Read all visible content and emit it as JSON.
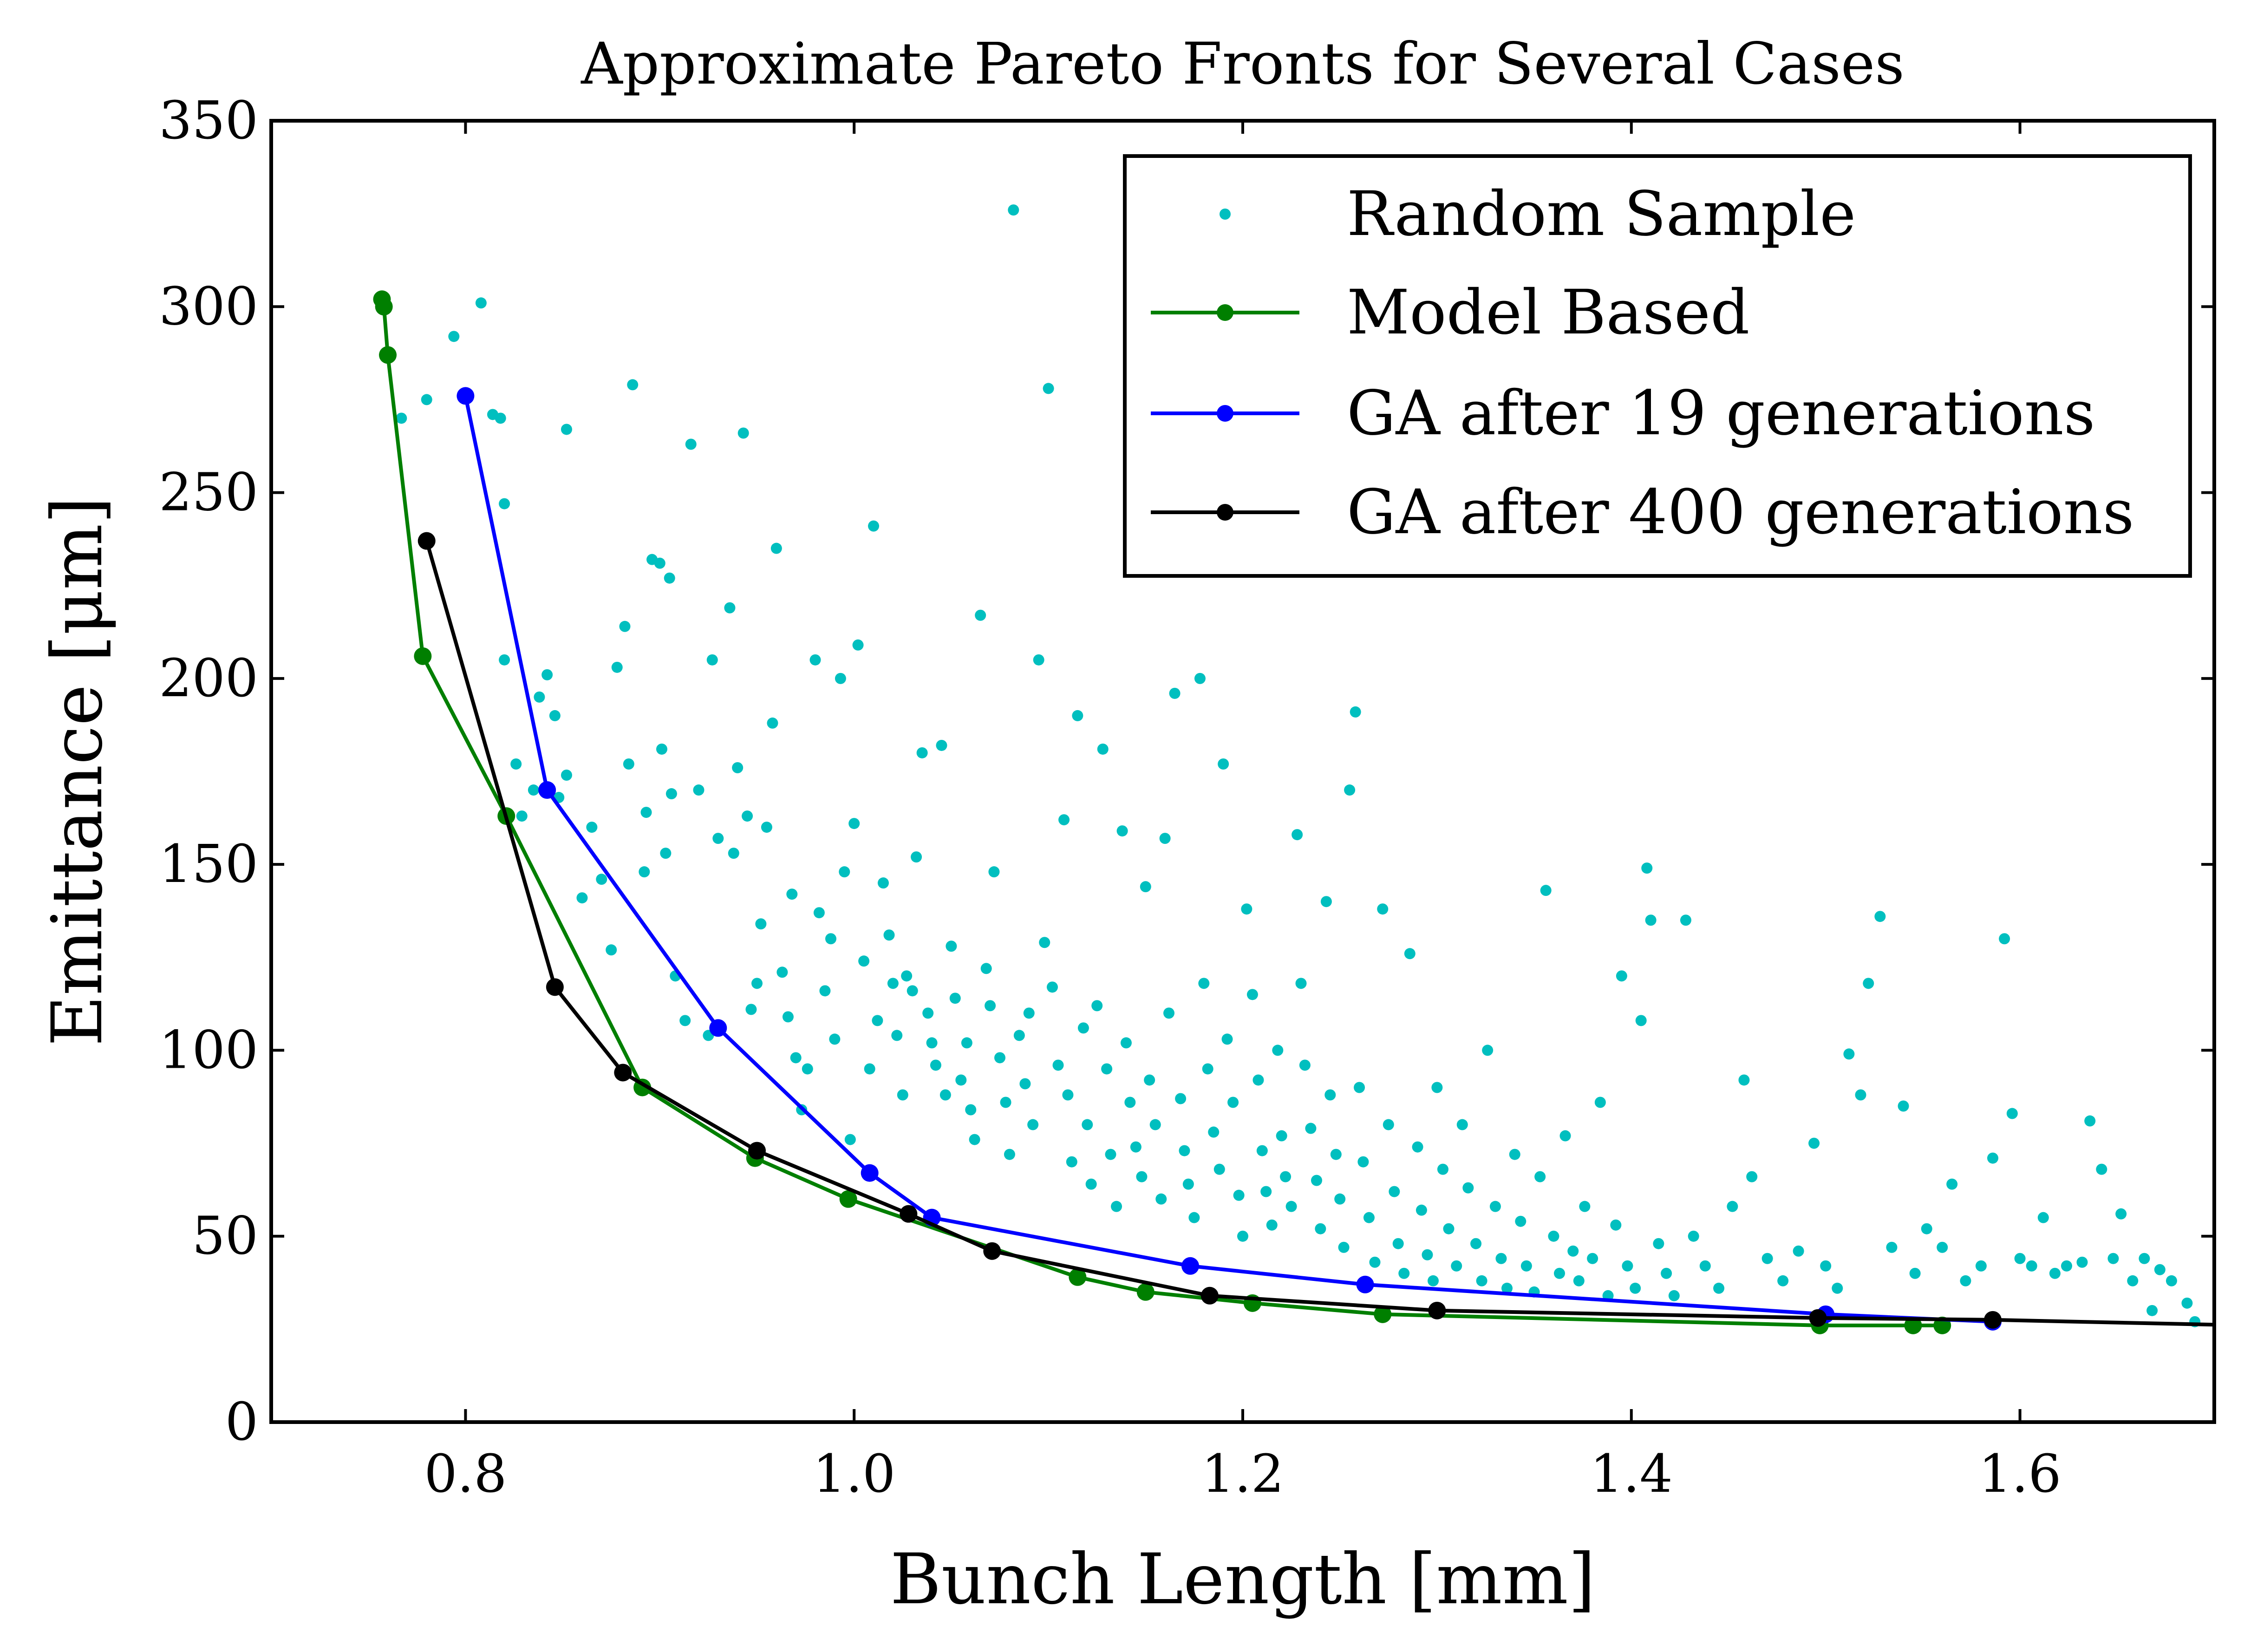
{
  "chart_data": {
    "type": "scatter",
    "title": "Approximate Pareto Fronts for Several Cases",
    "xlabel": "Bunch Length [mm]",
    "ylabel": "Emittance [μm]",
    "xlim": [
      0.7,
      1.7
    ],
    "ylim": [
      0,
      350
    ],
    "xticks": [
      0.8,
      1.0,
      1.2,
      1.4,
      1.6
    ],
    "xtick_labels": [
      "0.8",
      "1.0",
      "1.2",
      "1.4",
      "1.6"
    ],
    "yticks": [
      0,
      50,
      100,
      150,
      200,
      250,
      300,
      350
    ],
    "ytick_labels": [
      "0",
      "50",
      "100",
      "150",
      "200",
      "250",
      "300",
      "350"
    ],
    "grid": false,
    "legend_position": "top-right",
    "series": [
      {
        "name": "Random Sample",
        "kind": "scatter",
        "color": "#00bfbf",
        "points": [
          [
            0.767,
            270
          ],
          [
            0.78,
            275
          ],
          [
            0.794,
            292
          ],
          [
            0.808,
            301
          ],
          [
            0.814,
            271
          ],
          [
            0.818,
            270
          ],
          [
            0.82,
            247
          ],
          [
            0.82,
            205
          ],
          [
            0.826,
            177
          ],
          [
            0.829,
            163
          ],
          [
            0.835,
            170
          ],
          [
            0.838,
            195
          ],
          [
            0.842,
            201
          ],
          [
            0.846,
            190
          ],
          [
            0.848,
            168
          ],
          [
            0.852,
            267
          ],
          [
            0.852,
            174
          ],
          [
            0.86,
            141
          ],
          [
            0.865,
            160
          ],
          [
            0.87,
            146
          ],
          [
            0.875,
            127
          ],
          [
            0.878,
            203
          ],
          [
            0.882,
            214
          ],
          [
            0.884,
            177
          ],
          [
            0.886,
            279
          ],
          [
            0.892,
            148
          ],
          [
            0.893,
            164
          ],
          [
            0.896,
            232
          ],
          [
            0.9,
            231
          ],
          [
            0.901,
            181
          ],
          [
            0.903,
            153
          ],
          [
            0.905,
            227
          ],
          [
            0.906,
            169
          ],
          [
            0.908,
            120
          ],
          [
            0.913,
            108
          ],
          [
            0.916,
            263
          ],
          [
            0.92,
            170
          ],
          [
            0.925,
            104
          ],
          [
            0.927,
            205
          ],
          [
            0.93,
            157
          ],
          [
            0.936,
            219
          ],
          [
            0.938,
            153
          ],
          [
            0.94,
            176
          ],
          [
            0.943,
            266
          ],
          [
            0.945,
            163
          ],
          [
            0.947,
            111
          ],
          [
            0.95,
            118
          ],
          [
            0.952,
            134
          ],
          [
            0.955,
            160
          ],
          [
            0.958,
            188
          ],
          [
            0.96,
            235
          ],
          [
            0.963,
            121
          ],
          [
            0.966,
            109
          ],
          [
            0.968,
            142
          ],
          [
            0.97,
            98
          ],
          [
            0.973,
            84
          ],
          [
            0.976,
            95
          ],
          [
            0.98,
            205
          ],
          [
            0.982,
            137
          ],
          [
            0.985,
            116
          ],
          [
            0.988,
            130
          ],
          [
            0.99,
            103
          ],
          [
            0.993,
            200
          ],
          [
            0.995,
            148
          ],
          [
            0.998,
            76
          ],
          [
            1.0,
            161
          ],
          [
            1.002,
            209
          ],
          [
            1.005,
            124
          ],
          [
            1.008,
            95
          ],
          [
            1.01,
            241
          ],
          [
            1.012,
            108
          ],
          [
            1.015,
            145
          ],
          [
            1.018,
            131
          ],
          [
            1.02,
            118
          ],
          [
            1.022,
            104
          ],
          [
            1.025,
            88
          ],
          [
            1.027,
            120
          ],
          [
            1.03,
            116
          ],
          [
            1.032,
            152
          ],
          [
            1.035,
            180
          ],
          [
            1.038,
            110
          ],
          [
            1.04,
            102
          ],
          [
            1.042,
            96
          ],
          [
            1.045,
            182
          ],
          [
            1.047,
            88
          ],
          [
            1.05,
            128
          ],
          [
            1.052,
            114
          ],
          [
            1.055,
            92
          ],
          [
            1.058,
            102
          ],
          [
            1.06,
            84
          ],
          [
            1.062,
            76
          ],
          [
            1.065,
            217
          ],
          [
            1.068,
            122
          ],
          [
            1.07,
            112
          ],
          [
            1.072,
            148
          ],
          [
            1.075,
            98
          ],
          [
            1.078,
            86
          ],
          [
            1.08,
            72
          ],
          [
            1.082,
            326
          ],
          [
            1.085,
            104
          ],
          [
            1.088,
            91
          ],
          [
            1.09,
            110
          ],
          [
            1.092,
            80
          ],
          [
            1.095,
            205
          ],
          [
            1.098,
            129
          ],
          [
            1.1,
            278
          ],
          [
            1.102,
            117
          ],
          [
            1.105,
            96
          ],
          [
            1.108,
            162
          ],
          [
            1.11,
            88
          ],
          [
            1.112,
            70
          ],
          [
            1.115,
            190
          ],
          [
            1.118,
            106
          ],
          [
            1.12,
            80
          ],
          [
            1.122,
            64
          ],
          [
            1.125,
            112
          ],
          [
            1.128,
            181
          ],
          [
            1.13,
            95
          ],
          [
            1.132,
            72
          ],
          [
            1.135,
            58
          ],
          [
            1.138,
            159
          ],
          [
            1.14,
            102
          ],
          [
            1.142,
            86
          ],
          [
            1.145,
            74
          ],
          [
            1.148,
            66
          ],
          [
            1.15,
            144
          ],
          [
            1.152,
            92
          ],
          [
            1.155,
            80
          ],
          [
            1.158,
            60
          ],
          [
            1.16,
            157
          ],
          [
            1.162,
            110
          ],
          [
            1.165,
            196
          ],
          [
            1.168,
            87
          ],
          [
            1.17,
            73
          ],
          [
            1.172,
            64
          ],
          [
            1.175,
            55
          ],
          [
            1.178,
            200
          ],
          [
            1.18,
            118
          ],
          [
            1.182,
            95
          ],
          [
            1.185,
            78
          ],
          [
            1.188,
            68
          ],
          [
            1.19,
            177
          ],
          [
            1.192,
            103
          ],
          [
            1.195,
            86
          ],
          [
            1.198,
            61
          ],
          [
            1.2,
            50
          ],
          [
            1.202,
            138
          ],
          [
            1.205,
            115
          ],
          [
            1.208,
            92
          ],
          [
            1.21,
            73
          ],
          [
            1.212,
            62
          ],
          [
            1.215,
            53
          ],
          [
            1.218,
            100
          ],
          [
            1.22,
            77
          ],
          [
            1.222,
            66
          ],
          [
            1.225,
            58
          ],
          [
            1.228,
            158
          ],
          [
            1.23,
            118
          ],
          [
            1.232,
            96
          ],
          [
            1.235,
            79
          ],
          [
            1.238,
            65
          ],
          [
            1.24,
            52
          ],
          [
            1.243,
            140
          ],
          [
            1.245,
            88
          ],
          [
            1.248,
            72
          ],
          [
            1.25,
            60
          ],
          [
            1.252,
            47
          ],
          [
            1.255,
            170
          ],
          [
            1.258,
            191
          ],
          [
            1.26,
            90
          ],
          [
            1.262,
            70
          ],
          [
            1.265,
            55
          ],
          [
            1.268,
            43
          ],
          [
            1.272,
            138
          ],
          [
            1.275,
            80
          ],
          [
            1.278,
            62
          ],
          [
            1.28,
            48
          ],
          [
            1.283,
            40
          ],
          [
            1.286,
            126
          ],
          [
            1.29,
            74
          ],
          [
            1.292,
            57
          ],
          [
            1.295,
            45
          ],
          [
            1.298,
            38
          ],
          [
            1.3,
            90
          ],
          [
            1.303,
            68
          ],
          [
            1.306,
            52
          ],
          [
            1.31,
            42
          ],
          [
            1.313,
            80
          ],
          [
            1.316,
            63
          ],
          [
            1.32,
            48
          ],
          [
            1.323,
            38
          ],
          [
            1.326,
            100
          ],
          [
            1.33,
            58
          ],
          [
            1.333,
            44
          ],
          [
            1.336,
            36
          ],
          [
            1.34,
            72
          ],
          [
            1.343,
            54
          ],
          [
            1.346,
            42
          ],
          [
            1.35,
            35
          ],
          [
            1.353,
            66
          ],
          [
            1.356,
            143
          ],
          [
            1.36,
            50
          ],
          [
            1.363,
            40
          ],
          [
            1.366,
            77
          ],
          [
            1.37,
            46
          ],
          [
            1.373,
            38
          ],
          [
            1.376,
            58
          ],
          [
            1.38,
            44
          ],
          [
            1.384,
            86
          ],
          [
            1.388,
            34
          ],
          [
            1.392,
            53
          ],
          [
            1.395,
            120
          ],
          [
            1.398,
            42
          ],
          [
            1.402,
            36
          ],
          [
            1.405,
            108
          ],
          [
            1.408,
            149
          ],
          [
            1.41,
            135
          ],
          [
            1.414,
            48
          ],
          [
            1.418,
            40
          ],
          [
            1.422,
            34
          ],
          [
            1.428,
            135
          ],
          [
            1.432,
            50
          ],
          [
            1.438,
            42
          ],
          [
            1.445,
            36
          ],
          [
            1.452,
            58
          ],
          [
            1.458,
            92
          ],
          [
            1.462,
            66
          ],
          [
            1.47,
            44
          ],
          [
            1.478,
            38
          ],
          [
            1.486,
            46
          ],
          [
            1.494,
            75
          ],
          [
            1.5,
            42
          ],
          [
            1.506,
            36
          ],
          [
            1.512,
            99
          ],
          [
            1.518,
            88
          ],
          [
            1.522,
            118
          ],
          [
            1.528,
            136
          ],
          [
            1.534,
            47
          ],
          [
            1.54,
            85
          ],
          [
            1.546,
            40
          ],
          [
            1.552,
            52
          ],
          [
            1.56,
            47
          ],
          [
            1.565,
            64
          ],
          [
            1.572,
            38
          ],
          [
            1.58,
            42
          ],
          [
            1.586,
            71
          ],
          [
            1.592,
            130
          ],
          [
            1.596,
            83
          ],
          [
            1.6,
            44
          ],
          [
            1.606,
            42
          ],
          [
            1.612,
            55
          ],
          [
            1.618,
            40
          ],
          [
            1.624,
            42
          ],
          [
            1.632,
            43
          ],
          [
            1.636,
            81
          ],
          [
            1.642,
            68
          ],
          [
            1.648,
            44
          ],
          [
            1.652,
            56
          ],
          [
            1.658,
            38
          ],
          [
            1.664,
            44
          ],
          [
            1.668,
            30
          ],
          [
            1.672,
            41
          ],
          [
            1.678,
            38
          ],
          [
            1.686,
            32
          ],
          [
            1.69,
            27
          ]
        ]
      },
      {
        "name": "Model Based",
        "kind": "line-marker",
        "color": "#007f00",
        "points": [
          [
            0.757,
            302
          ],
          [
            0.758,
            300
          ],
          [
            0.76,
            287
          ],
          [
            0.778,
            206
          ],
          [
            0.821,
            163
          ],
          [
            0.891,
            90
          ],
          [
            0.949,
            71
          ],
          [
            0.997,
            60
          ],
          [
            1.115,
            39
          ],
          [
            1.15,
            35
          ],
          [
            1.205,
            32
          ],
          [
            1.272,
            29
          ],
          [
            1.497,
            26
          ],
          [
            1.545,
            26
          ],
          [
            1.56,
            26
          ]
        ]
      },
      {
        "name": "GA after 19 generations",
        "kind": "line-marker",
        "color": "#0000ff",
        "points": [
          [
            0.8,
            276
          ],
          [
            0.842,
            170
          ],
          [
            0.93,
            106
          ],
          [
            1.008,
            67
          ],
          [
            1.04,
            55
          ],
          [
            1.173,
            42
          ],
          [
            1.263,
            37
          ],
          [
            1.5,
            29
          ],
          [
            1.586,
            27
          ]
        ]
      },
      {
        "name": "GA after 400 generations",
        "kind": "line-marker",
        "color": "#000000",
        "line_extends_to": [
          1.7,
          26.2
        ],
        "points": [
          [
            0.78,
            237
          ],
          [
            0.846,
            117
          ],
          [
            0.881,
            94
          ],
          [
            0.95,
            73
          ],
          [
            1.028,
            56
          ],
          [
            1.071,
            46
          ],
          [
            1.183,
            34
          ],
          [
            1.3,
            30
          ],
          [
            1.496,
            28
          ],
          [
            1.586,
            27.5
          ]
        ]
      }
    ]
  }
}
